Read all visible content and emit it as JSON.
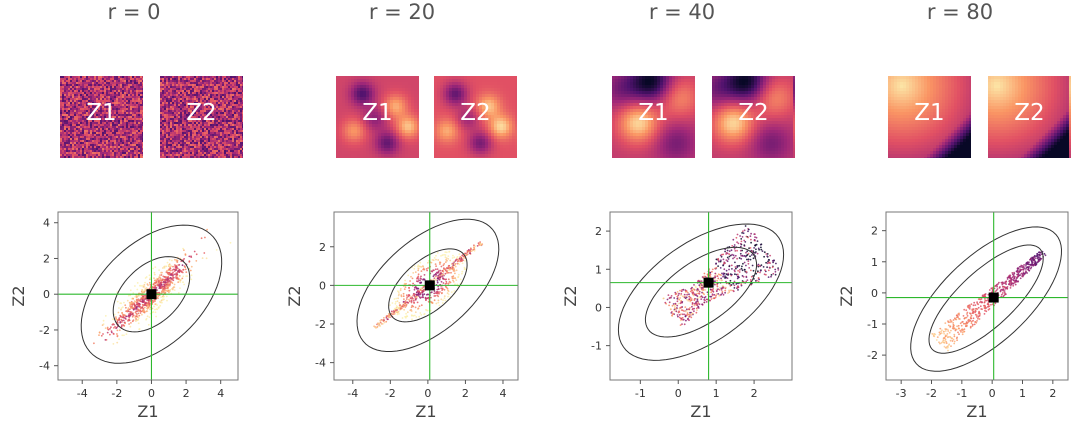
{
  "chart_data": [
    {
      "type": "scatter",
      "title": "r = 0",
      "xlabel": "Z1",
      "ylabel": "Z2",
      "tiles": [
        "Z1",
        "Z2"
      ],
      "xlim": [
        -5.4,
        5.0
      ],
      "ylim": [
        -4.8,
        4.6
      ],
      "xticks": [
        -4,
        -2,
        0,
        2,
        4
      ],
      "yticks": [
        -4,
        -2,
        0,
        2,
        4
      ],
      "point": [
        0,
        0
      ],
      "scatter": {
        "kind": "ellipse",
        "cx": 0,
        "cy": 0,
        "angle": 42,
        "a": 3.1,
        "b": 0.75,
        "n": 900
      },
      "contours": [
        {
          "cx": 0,
          "cy": 0,
          "angle": 42,
          "a": 2.6,
          "b": 1.6
        },
        {
          "cx": 0,
          "cy": 0,
          "angle": 42,
          "a": 4.8,
          "b": 2.9
        }
      ],
      "tile_style": "noise",
      "colors": {
        "grid": "#2db82d",
        "contour": "#333333"
      }
    },
    {
      "type": "scatter",
      "title": "r = 20",
      "xlabel": "Z1",
      "ylabel": "Z2",
      "tiles": [
        "Z1",
        "Z2"
      ],
      "xlim": [
        -5.0,
        4.8
      ],
      "ylim": [
        -4.9,
        3.8
      ],
      "xticks": [
        -4,
        -2,
        0,
        2,
        4
      ],
      "yticks": [
        -4,
        -2,
        0,
        2
      ],
      "point": [
        0.1,
        0
      ],
      "scatter": {
        "kind": "rings",
        "cx": 0,
        "cy": 0,
        "angle": 38,
        "a": 3.6,
        "b": 0.9,
        "n": 700
      },
      "contours": [
        {
          "cx": 0,
          "cy": 0,
          "angle": 40,
          "a": 2.5,
          "b": 1.3
        },
        {
          "cx": 0,
          "cy": 0,
          "angle": 40,
          "a": 4.5,
          "b": 2.4
        }
      ],
      "tile_style": "blobs",
      "colors": {
        "grid": "#2db82d",
        "contour": "#333333"
      }
    },
    {
      "type": "scatter",
      "title": "r = 40",
      "xlabel": "Z1",
      "ylabel": "Z2",
      "tiles": [
        "Z1",
        "Z2"
      ],
      "xlim": [
        -1.8,
        3.0
      ],
      "ylim": [
        -1.9,
        2.5
      ],
      "xticks": [
        -1,
        0,
        1,
        2
      ],
      "yticks": [
        -1,
        0,
        1,
        2
      ],
      "point": [
        0.8,
        0.65
      ],
      "scatter": {
        "kind": "wedge",
        "cx": 0.55,
        "cy": 0.35,
        "angle": 35,
        "a": 1.9,
        "b": 0.55,
        "n": 700
      },
      "contours": [
        {
          "cx": 0.6,
          "cy": 0.4,
          "angle": 35,
          "a": 1.7,
          "b": 0.8
        },
        {
          "cx": 0.6,
          "cy": 0.4,
          "angle": 35,
          "a": 2.5,
          "b": 1.3
        }
      ],
      "tile_style": "smooth",
      "colors": {
        "grid": "#2db82d",
        "contour": "#333333"
      }
    },
    {
      "type": "scatter",
      "title": "r = 80",
      "xlabel": "Z1",
      "ylabel": "Z2",
      "tiles": [
        "Z1",
        "Z2"
      ],
      "xlim": [
        -3.5,
        2.5
      ],
      "ylim": [
        -2.8,
        2.6
      ],
      "xticks": [
        -3,
        -2,
        -1,
        0,
        1,
        2
      ],
      "yticks": [
        -2,
        -1,
        0,
        1,
        2
      ],
      "point": [
        0.05,
        -0.15
      ],
      "scatter": {
        "kind": "fan",
        "cx": -0.2,
        "cy": -0.3,
        "angle": 40,
        "a": 2.5,
        "b": 0.35,
        "n": 600
      },
      "contours": [
        {
          "cx": -0.2,
          "cy": -0.2,
          "angle": 42,
          "a": 2.4,
          "b": 0.9
        },
        {
          "cx": -0.2,
          "cy": -0.2,
          "angle": 42,
          "a": 3.1,
          "b": 1.4
        }
      ],
      "tile_style": "gradient",
      "colors": {
        "grid": "#2db82d",
        "contour": "#333333"
      }
    }
  ]
}
